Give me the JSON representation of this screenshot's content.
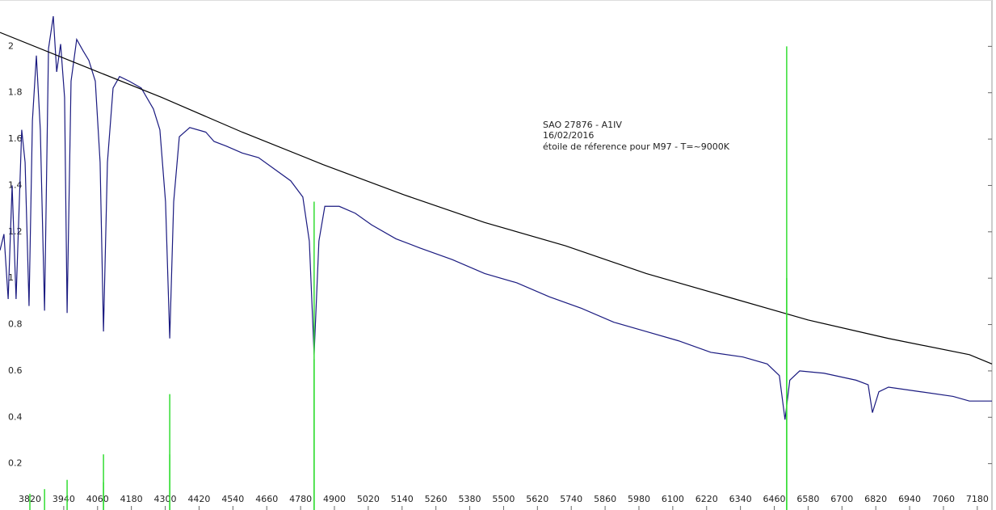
{
  "chart_data": {
    "type": "line",
    "annotation": [
      "SAO 27876 - A1IV",
      "16/02/2016",
      "étoile de réference pour M97 - T=~9000K"
    ],
    "xlim": [
      3714,
      7232
    ],
    "ylim": [
      0,
      2.2
    ],
    "xticks": [
      3820,
      3940,
      4060,
      4180,
      4300,
      4420,
      4540,
      4660,
      4780,
      4900,
      5020,
      5140,
      5260,
      5380,
      5500,
      5620,
      5740,
      5860,
      5980,
      6100,
      6220,
      6340,
      6460,
      6580,
      6700,
      6820,
      6940,
      7060,
      7180
    ],
    "yticks": [
      0.2,
      0.4,
      0.6,
      0.8,
      1,
      1.2,
      1.4,
      1.6,
      1.8,
      2
    ],
    "series": [
      {
        "color": "#1a1a80",
        "style": "line",
        "x": [
          3714,
          3728,
          3743,
          3757,
          3771,
          3791,
          3803,
          3817,
          3829,
          3843,
          3857,
          3872,
          3886,
          3903,
          3915,
          3929,
          3943,
          3952,
          3966,
          3986,
          4009,
          4029,
          4052,
          4069,
          4081,
          4095,
          4115,
          4138,
          4172,
          4215,
          4258,
          4281,
          4301,
          4316,
          4330,
          4350,
          4387,
          4444,
          4473,
          4516,
          4573,
          4631,
          4688,
          4745,
          4788,
          4811,
          4828,
          4845,
          4866,
          4917,
          4974,
          5032,
          5118,
          5204,
          5318,
          5433,
          5547,
          5662,
          5776,
          5891,
          6006,
          6120,
          6235,
          6349,
          6435,
          6478,
          6498,
          6515,
          6550,
          6636,
          6750,
          6793,
          6808,
          6831,
          6865,
          6980,
          7094,
          7152,
          7232
        ],
        "values": [
          1.12,
          1.19,
          0.91,
          1.4,
          0.91,
          1.64,
          1.5,
          0.88,
          1.68,
          1.96,
          1.64,
          0.86,
          1.99,
          2.13,
          1.89,
          2.01,
          1.78,
          0.85,
          1.85,
          2.03,
          1.98,
          1.94,
          1.85,
          1.5,
          0.77,
          1.5,
          1.82,
          1.87,
          1.85,
          1.82,
          1.73,
          1.64,
          1.33,
          0.74,
          1.33,
          1.61,
          1.65,
          1.63,
          1.59,
          1.57,
          1.54,
          1.52,
          1.47,
          1.42,
          1.35,
          1.16,
          0.67,
          1.16,
          1.31,
          1.31,
          1.28,
          1.23,
          1.17,
          1.13,
          1.08,
          1.02,
          0.98,
          0.92,
          0.87,
          0.81,
          0.77,
          0.73,
          0.68,
          0.66,
          0.63,
          0.58,
          0.39,
          0.56,
          0.6,
          0.59,
          0.56,
          0.54,
          0.42,
          0.51,
          0.53,
          0.51,
          0.49,
          0.47,
          0.47
        ]
      },
      {
        "color": "#000000",
        "style": "line",
        "x": [
          3714,
          4000,
          4287,
          4573,
          4860,
          5146,
          5433,
          5719,
          6006,
          6292,
          6579,
          6865,
          7152,
          7232
        ],
        "values": [
          2.06,
          1.92,
          1.78,
          1.63,
          1.49,
          1.36,
          1.24,
          1.14,
          1.02,
          0.92,
          0.82,
          0.74,
          0.67,
          0.63
        ]
      },
      {
        "color": "#33dd33",
        "style": "stem",
        "x": [
          3820,
          3872,
          3952,
          4081,
          4316,
          4828,
          6504
        ],
        "values": [
          0.07,
          0.09,
          0.13,
          0.24,
          0.5,
          1.33,
          2.0
        ]
      },
      {
        "color": "#33dd33",
        "style": "stem",
        "x": [
          3820,
          3872,
          3952,
          4081,
          4316,
          4828,
          6504
        ],
        "values": [
          null,
          null,
          null,
          0.12,
          0.24,
          0.65,
          1.0
        ]
      }
    ]
  }
}
